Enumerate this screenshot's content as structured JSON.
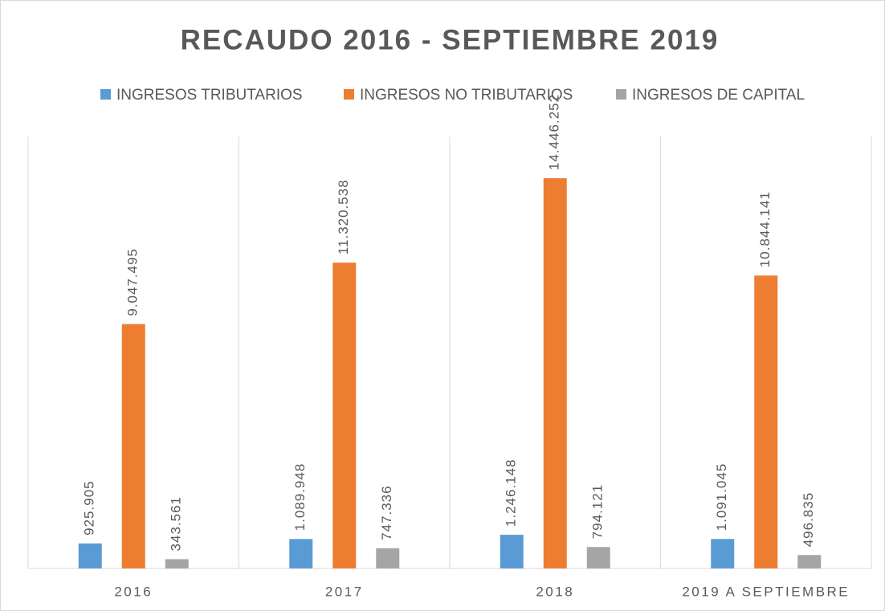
{
  "chart_data": {
    "type": "bar",
    "title": "RECAUDO 2016 - SEPTIEMBRE 2019",
    "categories": [
      "2016",
      "2017",
      "2018",
      "2019 A SEPTIEMBRE"
    ],
    "series": [
      {
        "name": "INGRESOS TRIBUTARIOS",
        "color": "#5b9bd5",
        "values": [
          925905,
          1089948,
          1246148,
          1091045
        ],
        "value_labels": [
          "925.905",
          "1.089.948",
          "1.246.148",
          "1.091.045"
        ]
      },
      {
        "name": "INGRESOS NO TRIBUTARIOS",
        "color": "#ed7d31",
        "values": [
          9047495,
          11320538,
          14446252,
          10844141
        ],
        "value_labels": [
          "9.047.495",
          "11.320.538",
          "14.446.252",
          "10.844.141"
        ]
      },
      {
        "name": "INGRESOS DE CAPITAL",
        "color": "#a5a5a5",
        "values": [
          343561,
          747336,
          794121,
          496835
        ],
        "value_labels": [
          "343.561",
          "747.336",
          "794.121",
          "496.835"
        ]
      }
    ],
    "legend": "top"
  }
}
